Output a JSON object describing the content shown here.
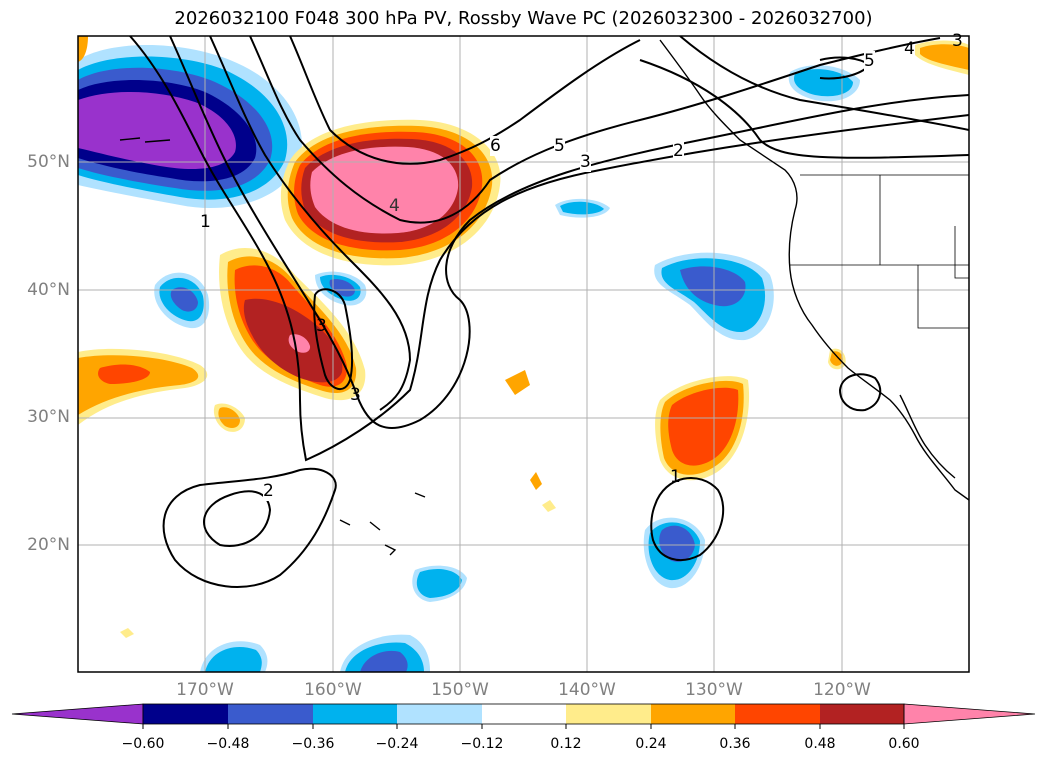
{
  "title": "2026032100 F048 300 hPa PV, Rossby Wave PC (2026032300 - 2026032700)",
  "map": {
    "lat_labels": [
      "50°N",
      "40°N",
      "30°N",
      "20°N"
    ],
    "lon_labels": [
      "170°W",
      "160°W",
      "150°W",
      "140°W",
      "130°W",
      "120°W"
    ],
    "contour_labels": [
      "6",
      "5",
      "3",
      "2",
      "4",
      "1",
      "3",
      "3",
      "2",
      "1",
      "5",
      "4",
      "3"
    ]
  },
  "colorbar": {
    "ticks": [
      "−0.60",
      "−0.48",
      "−0.36",
      "−0.24",
      "−0.12",
      "0.12",
      "0.24",
      "0.36",
      "0.48",
      "0.60"
    ],
    "colors": [
      "#9932CC",
      "#00008B",
      "#3A5BCD",
      "#00B2EE",
      "#B0E2FF",
      "#FFFFFF",
      "#FFEC8B",
      "#FFA500",
      "#FF4500",
      "#B22222",
      "#FF83AA"
    ]
  }
}
